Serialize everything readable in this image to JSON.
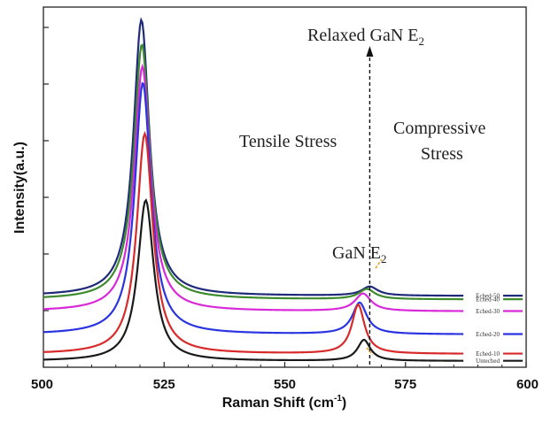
{
  "chart_data": {
    "type": "line",
    "xlabel": "Raman Shift (cm",
    "xlabel_sup": "-1",
    "xlabel_tail": ")",
    "ylabel": "Intensity(a.u.)",
    "xlim": [
      500,
      600
    ],
    "xticks": [
      500,
      525,
      550,
      575,
      600
    ],
    "grid": false,
    "legend_placement": "bottom-right",
    "annotations": {
      "relaxed": "Relaxed GaN E",
      "relaxed_sub": "2",
      "tensile": "Tensile Stress",
      "compressive_1": "Compressive",
      "compressive_2": "Stress",
      "gan_peak": "GaN E",
      "gan_peak_sub": "2"
    },
    "reference_line_x": 567.6,
    "x_range": [
      500,
      587
    ],
    "series": [
      {
        "name": "Eched-50",
        "color": "#1f2a7a",
        "baseline": 0.186,
        "peak1_x": 520.3,
        "peak1_h": 0.79,
        "peak1_w": 2.0,
        "peak2_x": 567.6,
        "peak2_h": 0.026,
        "peak2_w": 2.0
      },
      {
        "name": "Eched-40",
        "color": "#3e8a2f",
        "baseline": 0.176,
        "peak1_x": 520.4,
        "peak1_h": 0.73,
        "peak1_w": 2.0,
        "peak2_x": 567.0,
        "peak2_h": 0.029,
        "peak2_w": 2.0
      },
      {
        "name": "Eched-30",
        "color": "#d82ad8",
        "baseline": 0.142,
        "peak1_x": 520.5,
        "peak1_h": 0.7,
        "peak1_w": 2.0,
        "peak2_x": 566.2,
        "peak2_h": 0.05,
        "peak2_w": 2.0
      },
      {
        "name": "Eched-20",
        "color": "#2a35e0",
        "baseline": 0.076,
        "peak1_x": 520.6,
        "peak1_h": 0.72,
        "peak1_w": 2.0,
        "peak2_x": 565.5,
        "peak2_h": 0.09,
        "peak2_w": 1.8
      },
      {
        "name": "Eched-10",
        "color": "#d82a2a",
        "baseline": 0.02,
        "peak1_x": 521.0,
        "peak1_h": 0.63,
        "peak1_w": 2.0,
        "peak2_x": 565.2,
        "peak2_h": 0.14,
        "peak2_w": 1.6
      },
      {
        "name": "Unteched",
        "color": "#1a1a1a",
        "baseline": 0.0,
        "peak1_x": 521.2,
        "peak1_h": 0.46,
        "peak1_w": 2.0,
        "peak2_x": 566.4,
        "peak2_h": 0.06,
        "peak2_w": 1.6
      }
    ]
  }
}
